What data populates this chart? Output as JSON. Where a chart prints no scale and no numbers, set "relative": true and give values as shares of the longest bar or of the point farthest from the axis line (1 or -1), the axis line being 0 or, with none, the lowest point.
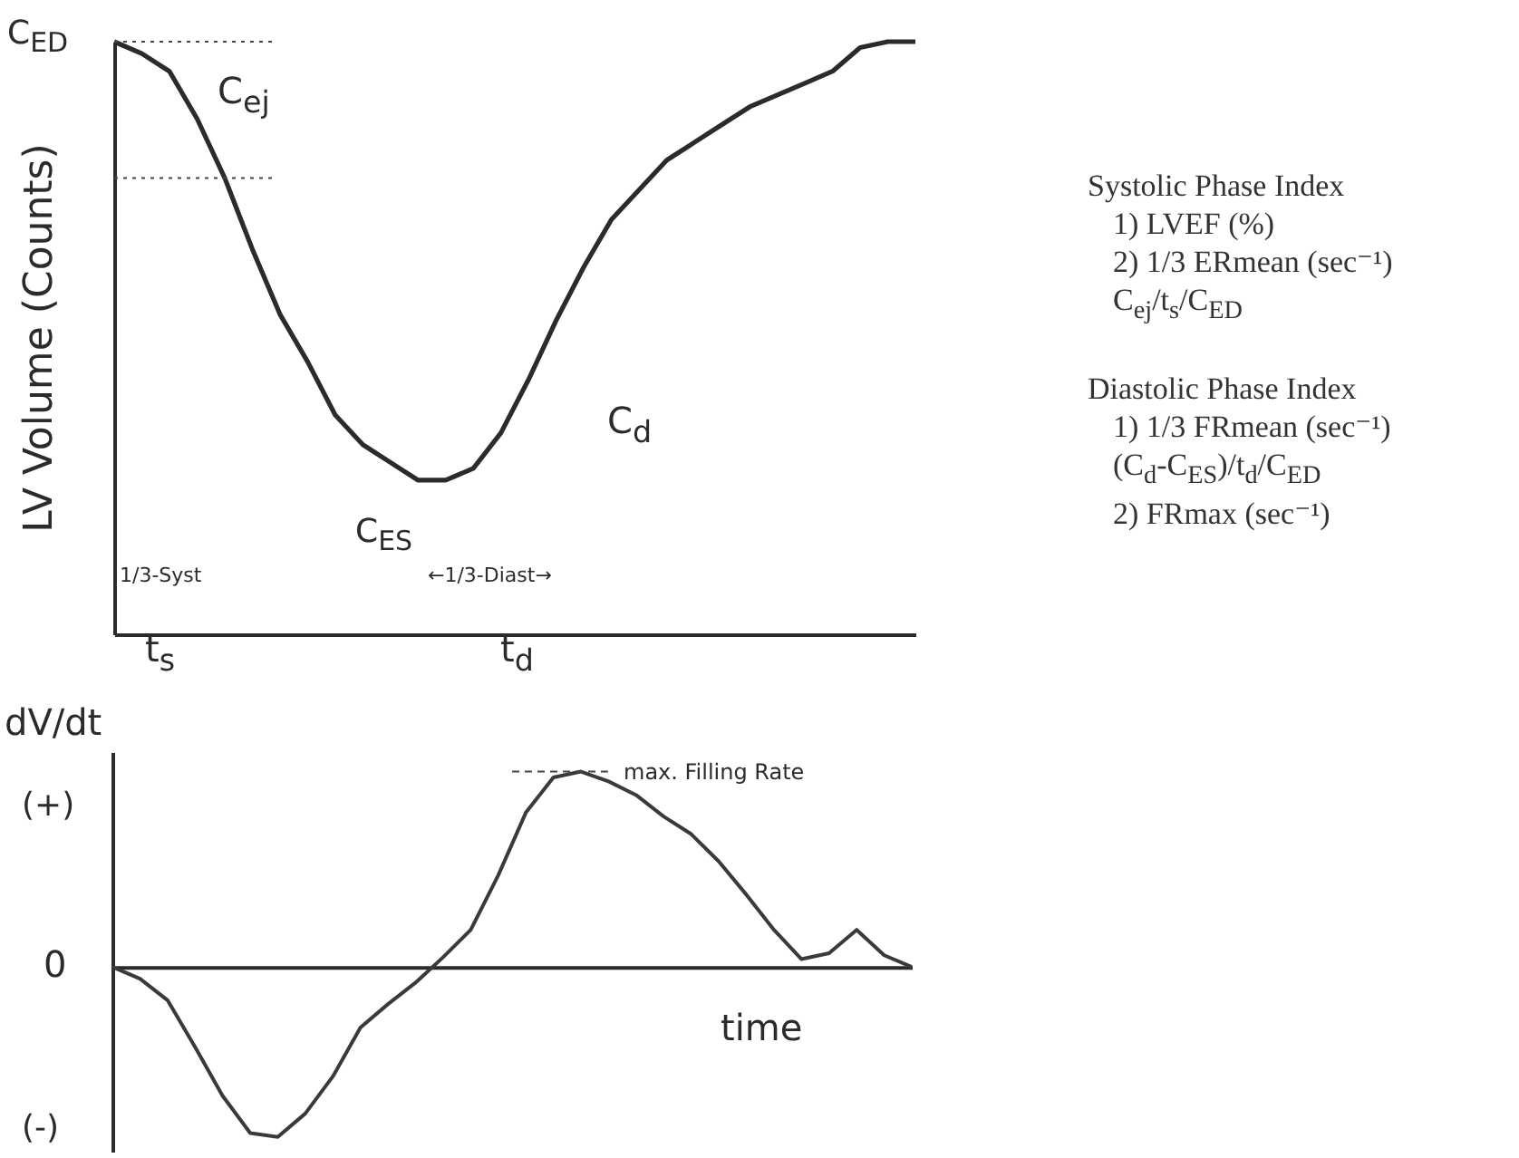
{
  "chart_data": [
    {
      "type": "line",
      "relative": true,
      "ylabel": "LV Volume (Counts)",
      "categories": [
        null,
        null,
        null,
        null,
        null,
        null,
        null,
        null,
        null,
        null,
        null,
        null,
        null,
        null,
        null,
        null,
        null,
        null,
        null,
        null,
        null,
        null,
        null,
        null,
        null,
        null,
        null,
        null,
        null,
        null
      ],
      "series": [
        {
          "color": "#2b2b2b",
          "values": [
            1.0,
            0.98,
            0.95,
            0.87,
            0.77,
            0.65,
            0.54,
            0.46,
            0.37,
            0.32,
            0.29,
            0.26,
            0.26,
            0.28,
            0.34,
            0.43,
            0.53,
            0.62,
            0.7,
            0.75,
            0.8,
            0.83,
            0.86,
            0.89,
            0.91,
            0.93,
            0.95,
            0.99,
            1.0,
            1.0
          ]
        }
      ],
      "ref_lines": [
        {
          "axis": "y",
          "value": 1,
          "label": "C$_{ED}$",
          "line_style": "dotted"
        },
        {
          "axis": "y",
          "value": 0.77,
          "line_style": "dotted"
        }
      ],
      "annotations": [
        "C$_{ej}$",
        "C$_{d}$",
        "C$_{ES}$",
        "1/3-Syst",
        "←1/3-Diast→",
        "t$_{s}$",
        "t$_{d}$"
      ]
    },
    {
      "type": "line",
      "relative": true,
      "ylabel": "dV/dt",
      "xlabel": "time",
      "categories": [
        null,
        null,
        null,
        null,
        null,
        null,
        null,
        null,
        null,
        null,
        null,
        null,
        null,
        null,
        null,
        null,
        null,
        null,
        null,
        null,
        null,
        null,
        null,
        null,
        null,
        null,
        null,
        null,
        null,
        null
      ],
      "series": [
        {
          "color": "#3a3a3a",
          "values": [
            0,
            -0.06,
            -0.17,
            -0.41,
            -0.66,
            -0.85,
            -0.87,
            -0.75,
            -0.56,
            -0.31,
            -0.19,
            -0.08,
            0.05,
            0.19,
            0.47,
            0.79,
            0.97,
            1.0,
            0.95,
            0.88,
            0.77,
            0.68,
            0.54,
            0.37,
            0.19,
            0.04,
            0.07,
            0.19,
            0.06,
            0
          ]
        }
      ],
      "ref_lines": [
        {
          "axis": "y",
          "value": 1,
          "label": "max. Filling Rate",
          "line_style": "dashed"
        }
      ],
      "annotations": [
        "(+)",
        "0",
        "(-)"
      ]
    },
    {
      "type": "other",
      "title": "Systolic Phase Index",
      "annotations": [
        "1) LVEF (%)",
        "2) 1/3 ERmean (sec⁻¹)",
        "C$_{ej}$/t$_{s}$/C$_{ED}$"
      ]
    },
    {
      "type": "other",
      "title": "Diastolic Phase Index",
      "annotations": [
        "1) 1/3 FRmean (sec⁻¹)",
        "(C$_{d}$-C$_{ES}$)/t$_{d}$/C$_{ED}$",
        "2) FRmax (sec⁻¹)"
      ]
    }
  ]
}
